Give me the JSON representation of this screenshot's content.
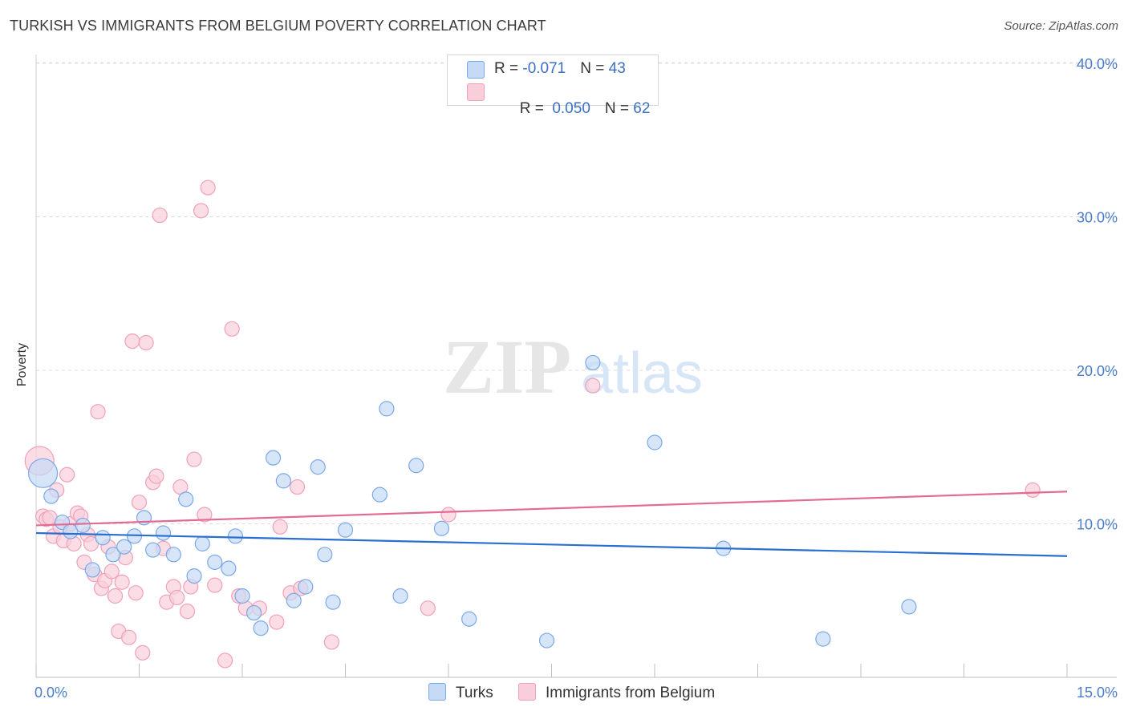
{
  "title": "TURKISH VS IMMIGRANTS FROM BELGIUM POVERTY CORRELATION CHART",
  "source": "Source: ZipAtlas.com",
  "watermark": {
    "zip": "ZIP",
    "atlas": "atlas"
  },
  "colors": {
    "turks": "#7aa8e8",
    "turks_fill": "#c6daf5",
    "belgium": "#f0a0b8",
    "belgium_fill": "#f9cedb",
    "turks_line": "#2a6fcf",
    "belgium_line": "#e36a93",
    "tick": "#4a7cc7"
  },
  "legend": {
    "turks": {
      "r_label": "R = ",
      "r_value": "-0.071",
      "n_label": "N = ",
      "n_value": "43"
    },
    "belgium": {
      "r_label": "R = ",
      "r_value": " 0.050",
      "n_label": "N = ",
      "n_value": "62"
    }
  },
  "bottom_legend": {
    "turks": "Turks",
    "belgium": "Immigrants from Belgium"
  },
  "chart_data": {
    "type": "scatter",
    "title": "TURKISH VS IMMIGRANTS FROM BELGIUM POVERTY CORRELATION CHART",
    "xlabel": "",
    "ylabel": "Poverty",
    "xlim": [
      0,
      15
    ],
    "ylim": [
      0,
      40.9
    ],
    "x_tick_labels": [
      "0.0%",
      "15.0%"
    ],
    "y_ticks": [
      10,
      20,
      30,
      40
    ],
    "y_tick_labels": [
      "10.0%",
      "20.0%",
      "30.0%",
      "40.0%"
    ],
    "grid": "horizontal dashed",
    "legend_position": "top-center",
    "series": [
      {
        "name": "Turks",
        "trend": {
          "x": [
            0,
            15
          ],
          "y": [
            9.4,
            7.9
          ]
        },
        "points": [
          {
            "x": 0.1,
            "y": 13.3,
            "s": "large"
          },
          {
            "x": 0.22,
            "y": 11.8
          },
          {
            "x": 0.38,
            "y": 10.1
          },
          {
            "x": 0.5,
            "y": 9.5
          },
          {
            "x": 0.68,
            "y": 9.9
          },
          {
            "x": 0.82,
            "y": 7.0
          },
          {
            "x": 0.97,
            "y": 9.1
          },
          {
            "x": 1.12,
            "y": 8.0
          },
          {
            "x": 1.28,
            "y": 8.5
          },
          {
            "x": 1.43,
            "y": 9.2
          },
          {
            "x": 1.57,
            "y": 10.4
          },
          {
            "x": 1.7,
            "y": 8.3
          },
          {
            "x": 1.85,
            "y": 9.4
          },
          {
            "x": 2.0,
            "y": 8.0
          },
          {
            "x": 2.18,
            "y": 11.6
          },
          {
            "x": 2.3,
            "y": 6.6
          },
          {
            "x": 2.42,
            "y": 8.7
          },
          {
            "x": 2.6,
            "y": 7.5
          },
          {
            "x": 2.8,
            "y": 7.1
          },
          {
            "x": 2.9,
            "y": 9.2
          },
          {
            "x": 3.0,
            "y": 5.3
          },
          {
            "x": 3.17,
            "y": 4.2
          },
          {
            "x": 3.27,
            "y": 3.2
          },
          {
            "x": 3.45,
            "y": 14.3
          },
          {
            "x": 3.6,
            "y": 12.8
          },
          {
            "x": 3.75,
            "y": 5.0
          },
          {
            "x": 3.92,
            "y": 5.9
          },
          {
            "x": 4.1,
            "y": 13.7
          },
          {
            "x": 4.2,
            "y": 8.0
          },
          {
            "x": 4.32,
            "y": 4.9
          },
          {
            "x": 4.5,
            "y": 9.6
          },
          {
            "x": 5.0,
            "y": 11.9
          },
          {
            "x": 5.1,
            "y": 17.5
          },
          {
            "x": 5.3,
            "y": 5.3
          },
          {
            "x": 5.53,
            "y": 13.8
          },
          {
            "x": 5.9,
            "y": 9.7
          },
          {
            "x": 6.3,
            "y": 3.8
          },
          {
            "x": 7.43,
            "y": 2.4
          },
          {
            "x": 8.1,
            "y": 20.5
          },
          {
            "x": 9.0,
            "y": 15.3
          },
          {
            "x": 10.0,
            "y": 8.4
          },
          {
            "x": 11.45,
            "y": 2.5
          },
          {
            "x": 12.7,
            "y": 4.6
          }
        ]
      },
      {
        "name": "Immigrants from Belgium",
        "trend": {
          "x": [
            0,
            15
          ],
          "y": [
            9.9,
            12.1
          ]
        },
        "points": [
          {
            "x": 0.05,
            "y": 14.1,
            "s": "large"
          },
          {
            "x": 0.1,
            "y": 10.5
          },
          {
            "x": 0.15,
            "y": 10.3
          },
          {
            "x": 0.2,
            "y": 10.4
          },
          {
            "x": 0.25,
            "y": 9.2
          },
          {
            "x": 0.3,
            "y": 12.2
          },
          {
            "x": 0.35,
            "y": 9.8
          },
          {
            "x": 0.4,
            "y": 8.9
          },
          {
            "x": 0.45,
            "y": 13.2
          },
          {
            "x": 0.5,
            "y": 10.0
          },
          {
            "x": 0.55,
            "y": 8.7
          },
          {
            "x": 0.6,
            "y": 10.7
          },
          {
            "x": 0.65,
            "y": 10.5
          },
          {
            "x": 0.7,
            "y": 7.5
          },
          {
            "x": 0.75,
            "y": 9.3
          },
          {
            "x": 0.8,
            "y": 8.7
          },
          {
            "x": 0.85,
            "y": 6.7
          },
          {
            "x": 0.9,
            "y": 17.3
          },
          {
            "x": 0.95,
            "y": 5.8
          },
          {
            "x": 1.0,
            "y": 6.3
          },
          {
            "x": 1.05,
            "y": 8.5
          },
          {
            "x": 1.1,
            "y": 6.9
          },
          {
            "x": 1.15,
            "y": 5.3
          },
          {
            "x": 1.2,
            "y": 3.0
          },
          {
            "x": 1.25,
            "y": 6.2
          },
          {
            "x": 1.3,
            "y": 7.8
          },
          {
            "x": 1.35,
            "y": 2.6
          },
          {
            "x": 1.4,
            "y": 21.9
          },
          {
            "x": 1.45,
            "y": 5.5
          },
          {
            "x": 1.5,
            "y": 11.4
          },
          {
            "x": 1.55,
            "y": 1.6
          },
          {
            "x": 1.6,
            "y": 21.8
          },
          {
            "x": 1.7,
            "y": 12.7
          },
          {
            "x": 1.75,
            "y": 13.1
          },
          {
            "x": 1.8,
            "y": 30.1
          },
          {
            "x": 1.85,
            "y": 8.4
          },
          {
            "x": 1.9,
            "y": 4.9
          },
          {
            "x": 2.0,
            "y": 5.9
          },
          {
            "x": 2.05,
            "y": 5.2
          },
          {
            "x": 2.1,
            "y": 12.4
          },
          {
            "x": 2.2,
            "y": 4.3
          },
          {
            "x": 2.25,
            "y": 5.9
          },
          {
            "x": 2.3,
            "y": 14.2
          },
          {
            "x": 2.4,
            "y": 30.4
          },
          {
            "x": 2.45,
            "y": 10.6
          },
          {
            "x": 2.5,
            "y": 31.9
          },
          {
            "x": 2.6,
            "y": 6.0
          },
          {
            "x": 2.75,
            "y": 1.1
          },
          {
            "x": 2.85,
            "y": 22.7
          },
          {
            "x": 2.95,
            "y": 5.3
          },
          {
            "x": 3.05,
            "y": 4.5
          },
          {
            "x": 3.25,
            "y": 4.5
          },
          {
            "x": 3.5,
            "y": 3.6
          },
          {
            "x": 3.55,
            "y": 9.8
          },
          {
            "x": 3.7,
            "y": 5.5
          },
          {
            "x": 3.8,
            "y": 12.4
          },
          {
            "x": 3.85,
            "y": 5.8
          },
          {
            "x": 4.3,
            "y": 2.3
          },
          {
            "x": 5.7,
            "y": 4.5
          },
          {
            "x": 6.0,
            "y": 10.6
          },
          {
            "x": 8.1,
            "y": 19.0
          },
          {
            "x": 14.5,
            "y": 12.2
          }
        ]
      }
    ]
  }
}
